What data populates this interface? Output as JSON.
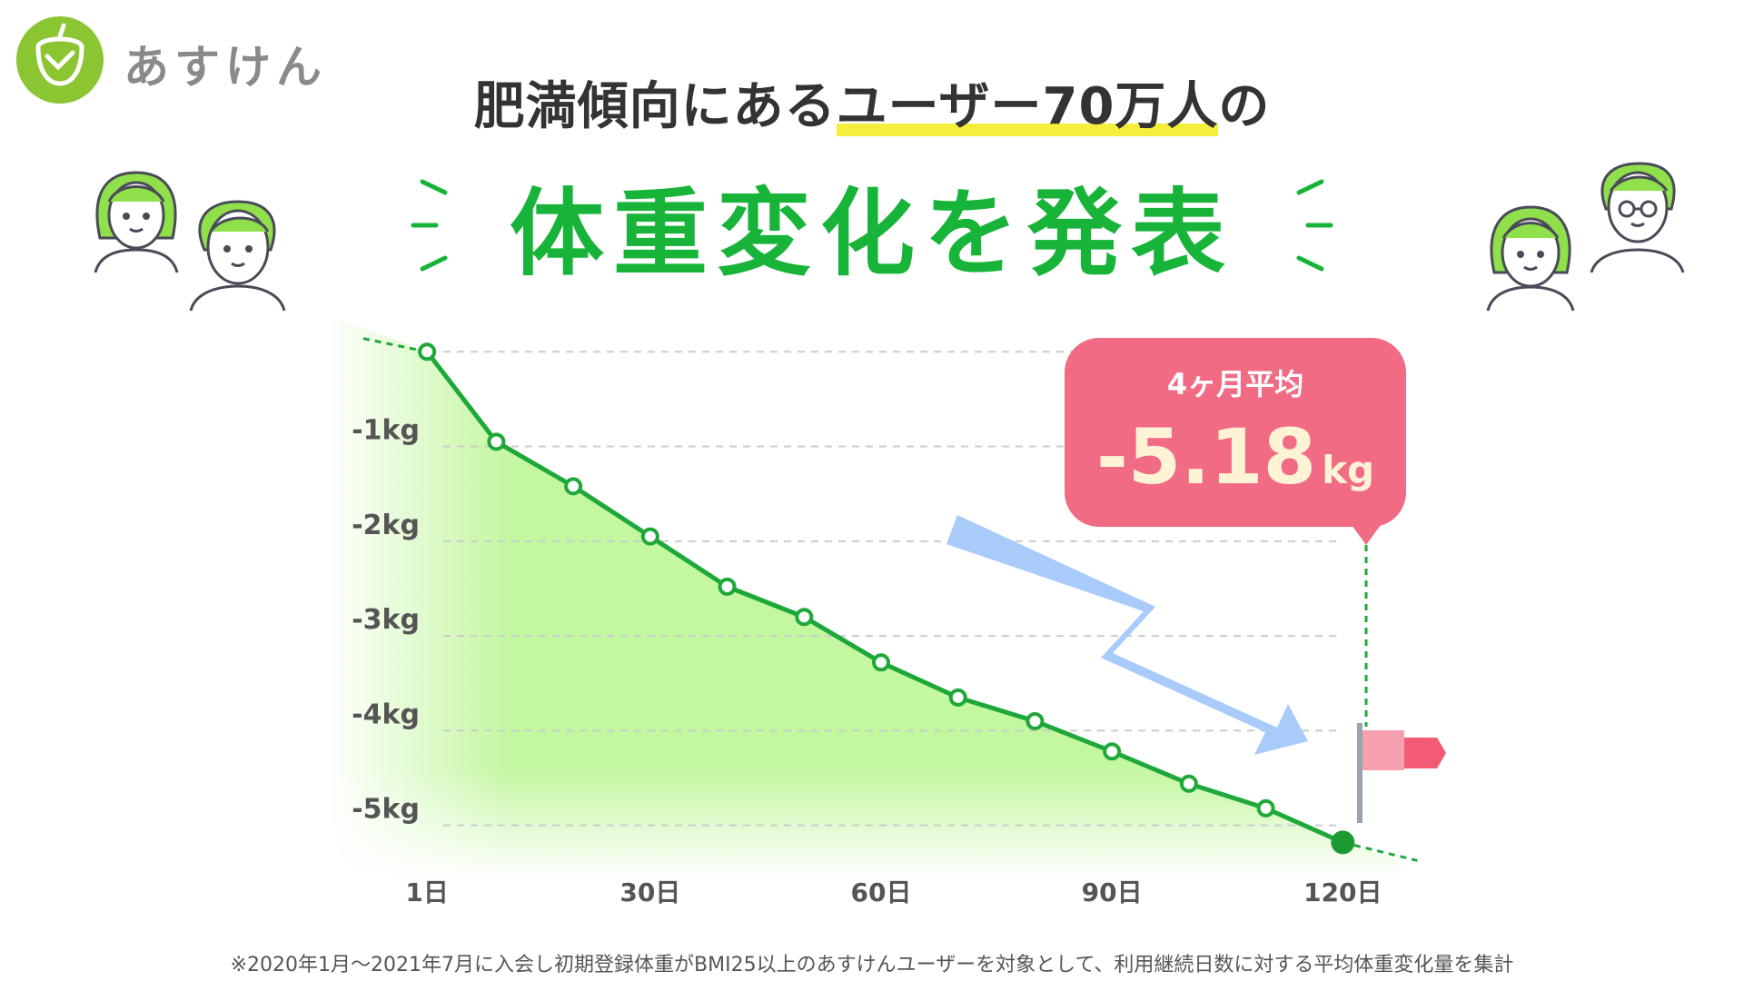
{
  "brand": {
    "name": "あすけん"
  },
  "headline": {
    "pre": "肥満傾向にある",
    "highlight": "ユーザー70万人",
    "post": "の"
  },
  "main_heading": "体重変化を発表",
  "callout": {
    "label": "4ヶ月平均",
    "value": "-5.18",
    "unit": "kg"
  },
  "footnote": "※2020年1月〜2021年7月に入会し初期登録体重がBMI25以上のあすけんユーザーを対象として、利用継続日数に対する平均体重変化量を集計",
  "colors": {
    "brand_green": "#8bc532",
    "heading_green": "#18b43a",
    "line_green": "#1fa83a",
    "area_green": "#a9f07c",
    "callout_pink": "#f26b84",
    "arrow_blue": "#a9cbfa",
    "flag_red": "#f25b73"
  },
  "chart_data": {
    "type": "line",
    "title": "",
    "xlabel": "",
    "ylabel": "",
    "x_ticks": [
      "1日",
      "30日",
      "60日",
      "90日",
      "120日"
    ],
    "x_tick_values": [
      1,
      30,
      60,
      90,
      120
    ],
    "y_ticks": [
      "-1kg",
      "-2kg",
      "-3kg",
      "-4kg",
      "-5kg"
    ],
    "y_tick_values": [
      -1,
      -2,
      -3,
      -4,
      -5
    ],
    "xlim": [
      -12,
      132
    ],
    "ylim": [
      -5.55,
      0.3
    ],
    "grid": true,
    "series": [
      {
        "x": [
          1,
          10,
          20,
          30,
          40,
          50,
          60,
          70,
          80,
          90,
          100,
          110,
          120
        ],
        "y": [
          0,
          -0.95,
          -1.42,
          -1.95,
          -2.48,
          -2.8,
          -3.28,
          -3.65,
          -3.9,
          -4.22,
          -4.56,
          -4.82,
          -5.18
        ]
      }
    ],
    "final_point": {
      "x": 120,
      "y": -5.18
    }
  }
}
